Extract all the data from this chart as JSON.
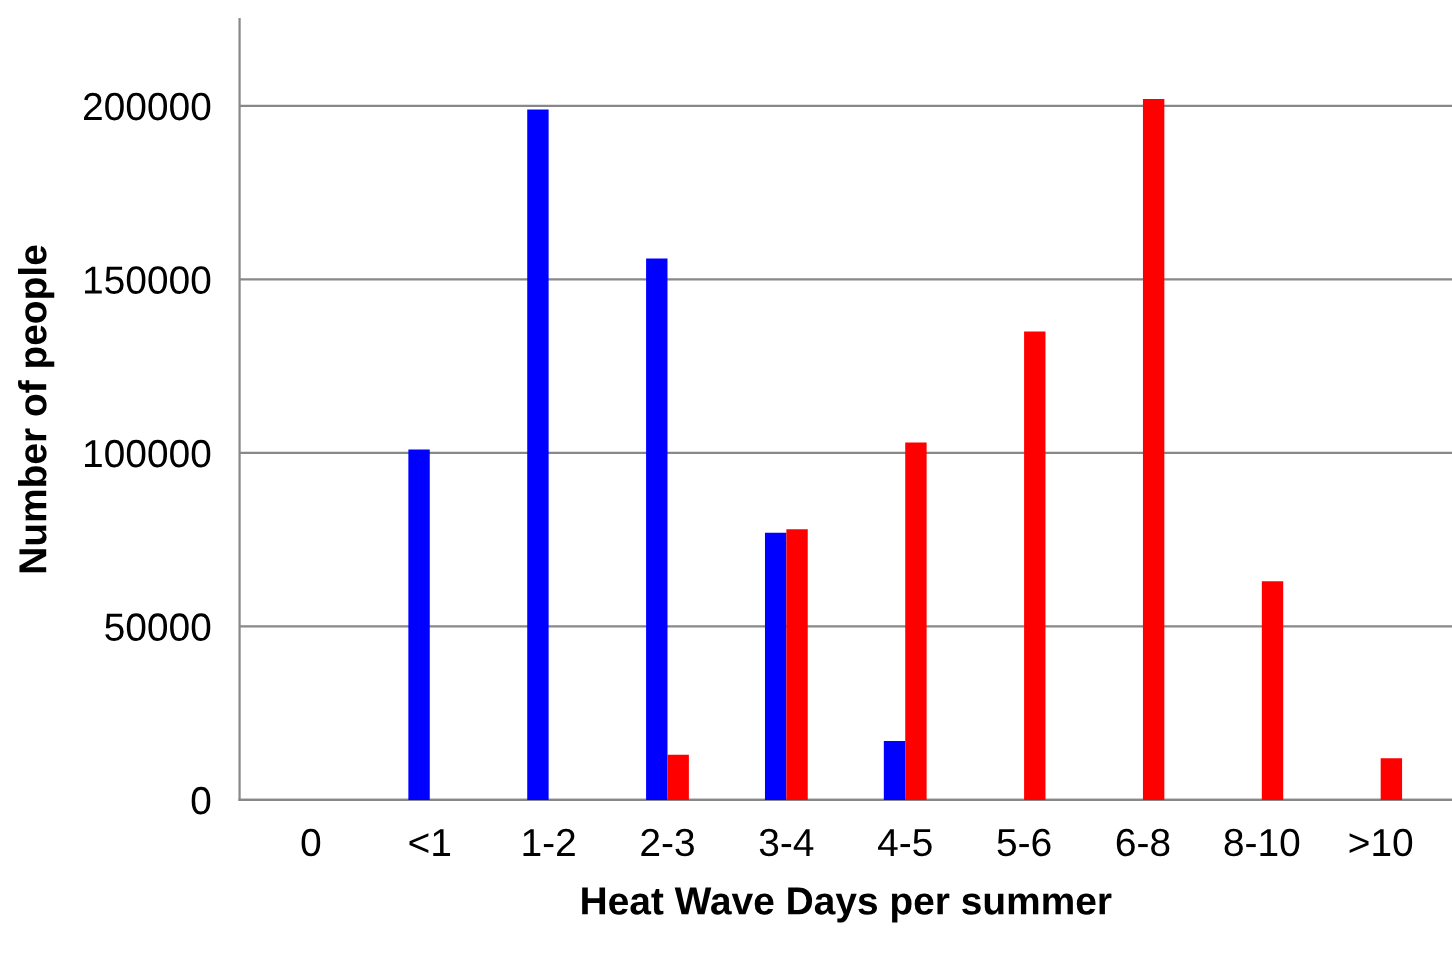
{
  "chart_data": {
    "type": "bar",
    "xlabel": "Heat Wave Days per summer",
    "ylabel": "Number of people",
    "categories": [
      "0",
      "<1",
      "1-2",
      "2-3",
      "3-4",
      "4-5",
      "5-6",
      "6-8",
      "8-10",
      ">10"
    ],
    "series": [
      {
        "color": "#0000ff",
        "values": [
          null,
          101000,
          199000,
          156000,
          77000,
          17000,
          null,
          null,
          null,
          null
        ]
      },
      {
        "color": "#ff0000",
        "values": [
          null,
          null,
          null,
          13000,
          78000,
          103000,
          135000,
          202000,
          63000,
          12000
        ]
      }
    ],
    "ylim": [
      0,
      225000
    ],
    "yticks": [
      0,
      50000,
      100000,
      150000,
      200000
    ],
    "grid": "y",
    "legend": false
  }
}
